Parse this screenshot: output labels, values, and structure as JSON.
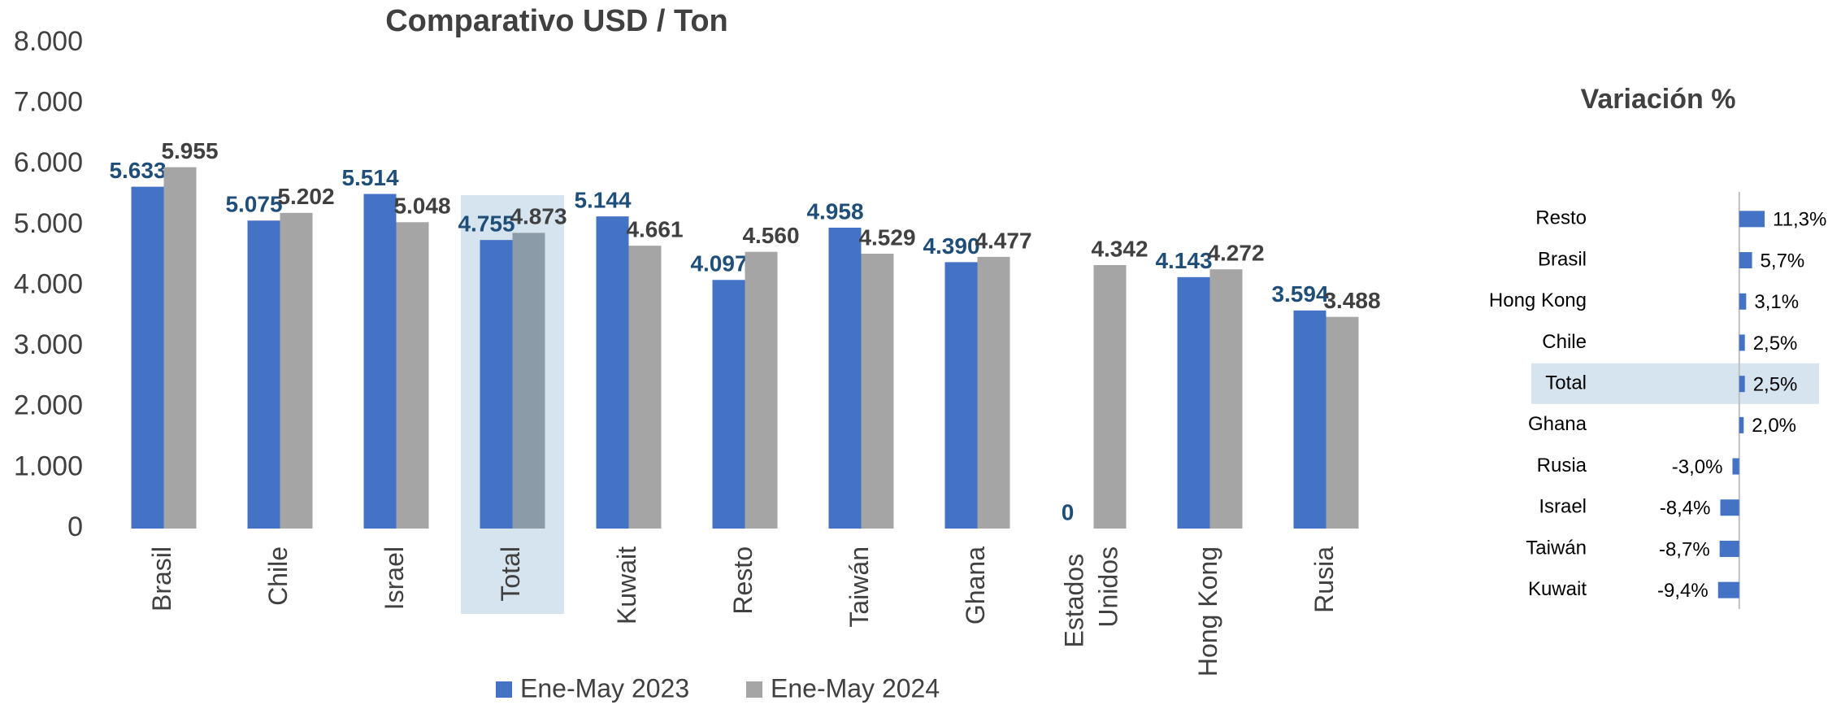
{
  "chart_data": [
    {
      "type": "bar",
      "title": "Comparativo USD / Ton",
      "categories": [
        "Brasil",
        "Chile",
        "Israel",
        "Total",
        "Kuwait",
        "Resto",
        "Taiwán",
        "Ghana",
        "Estados Unidos",
        "Hong Kong",
        "Rusia"
      ],
      "highlight": "Total",
      "series": [
        {
          "name": "Ene-May 2023",
          "color": "#4472c4",
          "label_color": "#1f4e79",
          "values": [
            5633,
            5075,
            5514,
            4755,
            5144,
            4097,
            4958,
            4390,
            0,
            4143,
            3594
          ],
          "value_labels": [
            "5.633",
            "5.075",
            "5.514",
            "4.755",
            "5.144",
            "4.097",
            "4.958",
            "4.390",
            "0",
            "4.143",
            "3.594"
          ]
        },
        {
          "name": "Ene-May 2024",
          "color": "#a5a5a5",
          "highlight_color": "#8c9ba8",
          "label_color": "#404040",
          "values": [
            5955,
            5202,
            5048,
            4873,
            4661,
            4560,
            4529,
            4477,
            4342,
            4272,
            3488
          ],
          "value_labels": [
            "5.955",
            "5.202",
            "5.048",
            "4.873",
            "4.661",
            "4.560",
            "4.529",
            "4.477",
            "4.342",
            "4.272",
            "3.488"
          ]
        }
      ],
      "ylim": [
        0,
        8000
      ],
      "yticks": [
        0,
        {
          "value": 1000,
          "label": "1.000"
        },
        {
          "value": 2000,
          "label": "2.000"
        },
        {
          "value": 3000,
          "label": "3.000"
        },
        {
          "value": 4000,
          "label": "4.000"
        },
        {
          "value": 5000,
          "label": "5.000"
        },
        {
          "value": 6000,
          "label": "6.000"
        },
        {
          "value": 7000,
          "label": "7.000"
        },
        {
          "value": 8000,
          "label": "8.000"
        }
      ],
      "legend": "bottom"
    },
    {
      "type": "hbar",
      "title": "Variación %",
      "categories": [
        "Resto",
        "Brasil",
        "Hong Kong",
        "Chile",
        "Total",
        "Ghana",
        "Rusia",
        "Israel",
        "Taiwán",
        "Kuwait"
      ],
      "highlight": "Total",
      "values": [
        11.3,
        5.7,
        3.1,
        2.5,
        2.5,
        2.0,
        -3.0,
        -8.4,
        -8.7,
        -9.4
      ],
      "value_labels": [
        "11,3%",
        "5,7%",
        "3,1%",
        "2,5%",
        "2,5%",
        "2,0%",
        "-3,0%",
        "-8,4%",
        "-8,7%",
        "-9,4%"
      ],
      "color": "#4472c4",
      "xlim": [
        -92,
        38
      ]
    }
  ]
}
